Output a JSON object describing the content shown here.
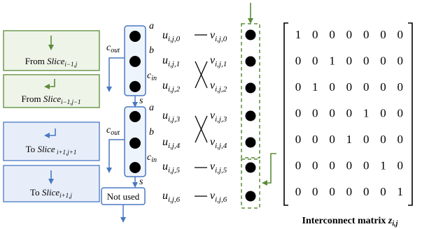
{
  "legend": {
    "from_same": {
      "label": "From ",
      "slice": "Slice",
      "sub": "i−1,j"
    },
    "from_prev": {
      "label": "From ",
      "slice": "Slice",
      "sub": "i−1,j−1"
    },
    "to_next": {
      "label": "To ",
      "slice": "Slice",
      "sub": " i+1,j+1"
    },
    "to_same": {
      "label": "To ",
      "slice": "Slice",
      "sub": "i+1,j"
    }
  },
  "adder_ports": {
    "a": "a",
    "b": "b",
    "cin": "c",
    "cin_sub": "in",
    "cout": "c",
    "cout_sub": "out",
    "s": "s"
  },
  "not_used": "Not used",
  "u": {
    "base": "u",
    "subs": [
      "i,j,0",
      "i,j,1",
      "i,j,2",
      "i,j,3",
      "i,j,4",
      "i,j,5",
      "i,j,6"
    ]
  },
  "v": {
    "base": "v",
    "subs": [
      "i,j,0",
      "i,j,1",
      "i,j,2",
      "i,j,3",
      "i,j,4",
      "i,j,5",
      "i,j,6"
    ]
  },
  "matrix": {
    "rows": [
      [
        "1",
        "0",
        "0",
        "0",
        "0",
        "0",
        "0"
      ],
      [
        "0",
        "0",
        "1",
        "0",
        "0",
        "0",
        "0"
      ],
      [
        "0",
        "1",
        "0",
        "0",
        "0",
        "0",
        "0"
      ],
      [
        "0",
        "0",
        "0",
        "0",
        "1",
        "0",
        "0"
      ],
      [
        "0",
        "0",
        "0",
        "1",
        "0",
        "0",
        "0"
      ],
      [
        "0",
        "0",
        "0",
        "0",
        "0",
        "1",
        "0"
      ],
      [
        "0",
        "0",
        "0",
        "0",
        "0",
        "0",
        "1"
      ]
    ],
    "caption": "Interconnect matrix ",
    "caption_var": "z",
    "caption_sub": "i,j"
  },
  "colors": {
    "green": "#5b8c3a",
    "green_fill": "#eef4e8",
    "blue": "#4a78c2",
    "blue_fill": "#e8eef9",
    "black": "#000000"
  }
}
